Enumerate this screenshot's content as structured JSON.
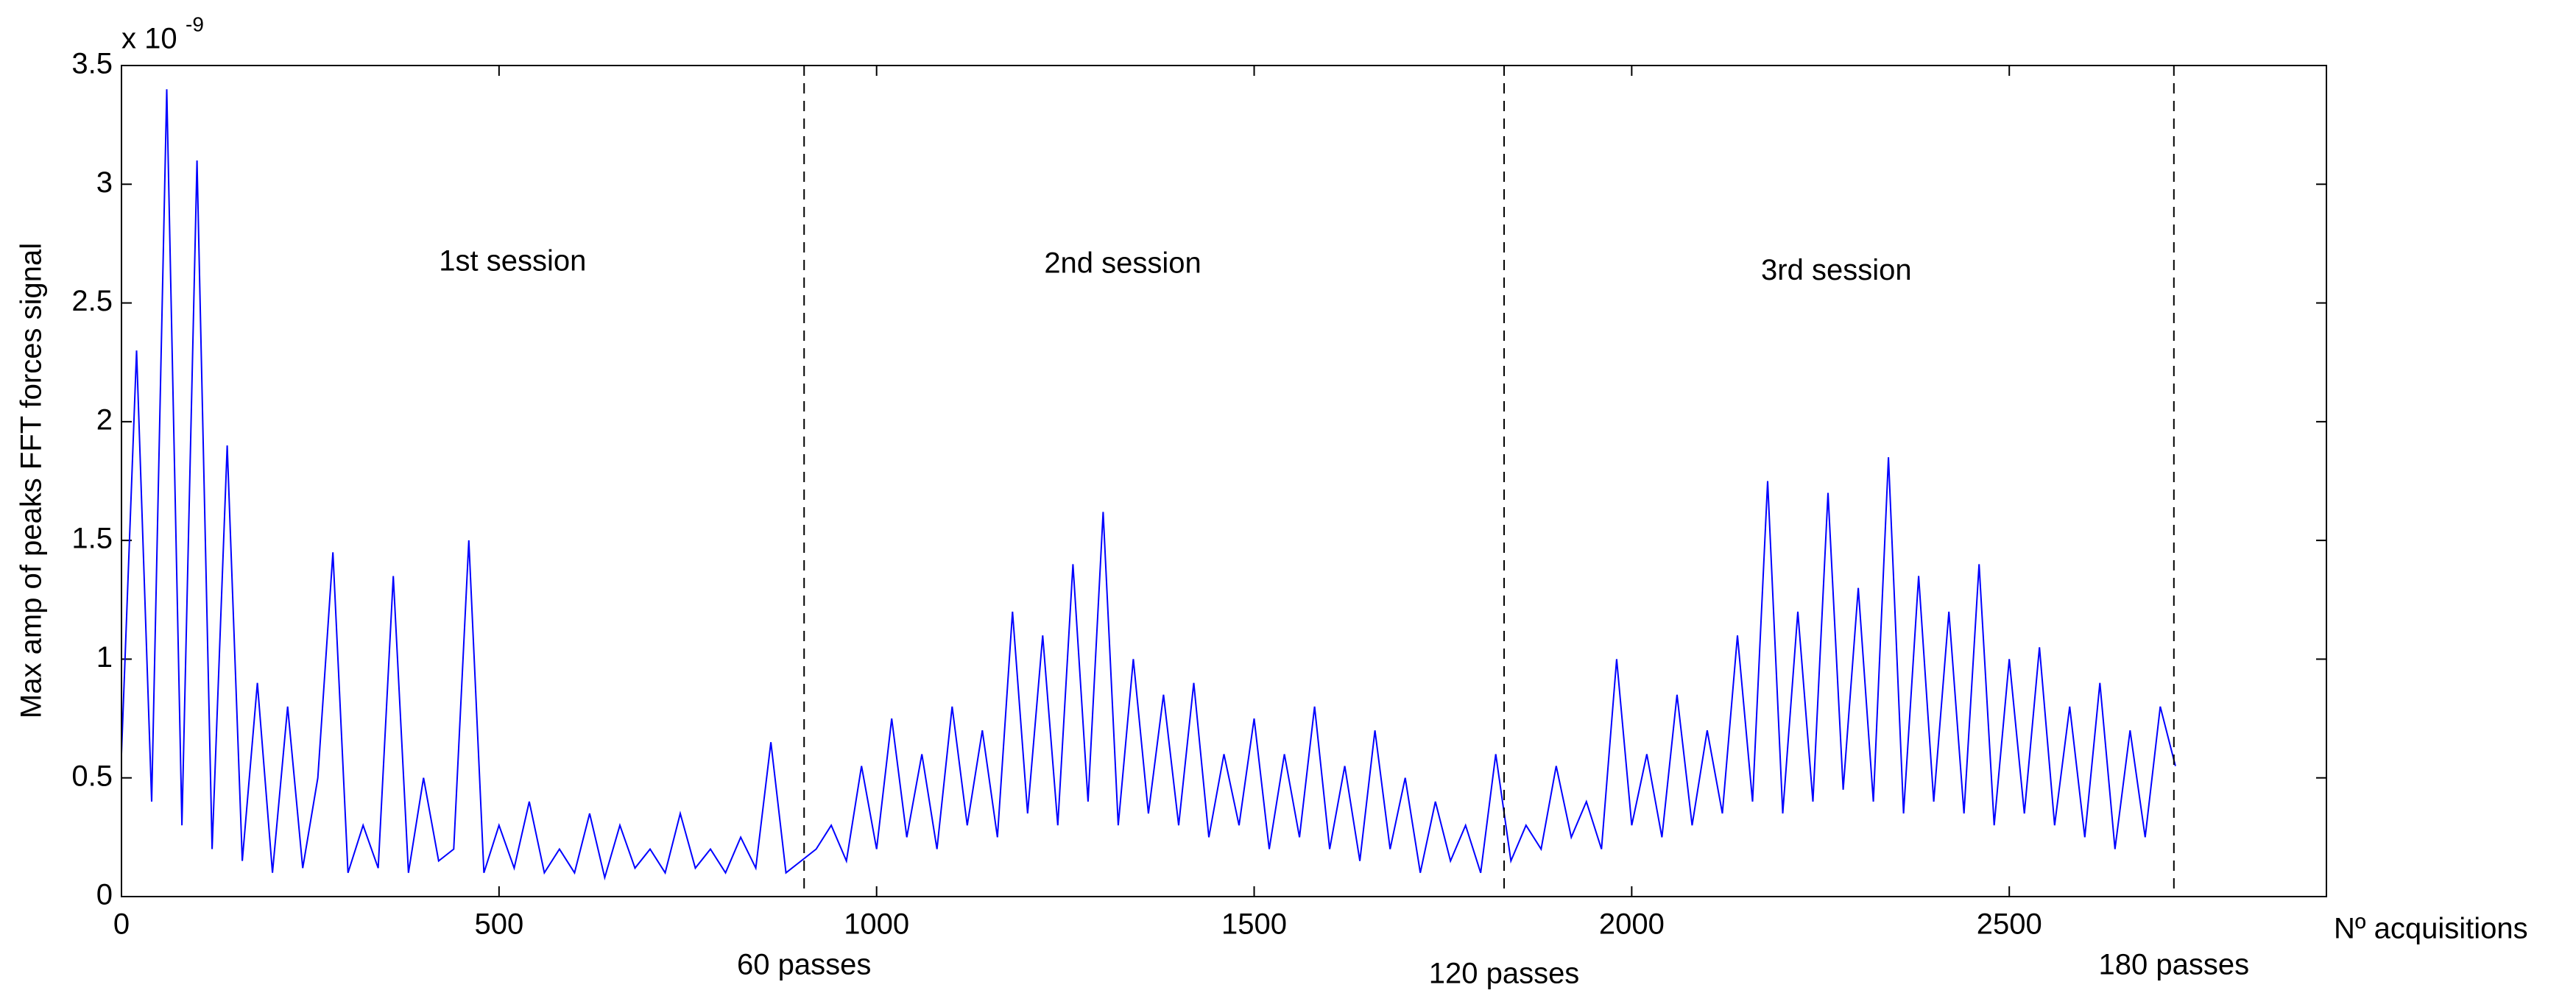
{
  "chart_data": {
    "type": "line",
    "ylabel": "Max amp of peaks FFT forces signal",
    "xlabel": "Nº acquisitions",
    "y_scale_base": "x 10",
    "y_scale_exponent": "-9",
    "xlim": [
      0,
      2920
    ],
    "ylim": [
      0,
      3.5
    ],
    "xticks": [
      0,
      500,
      1000,
      1500,
      2000,
      2500
    ],
    "yticks": [
      0,
      0.5,
      1,
      1.5,
      2,
      2.5,
      3,
      3.5
    ],
    "vlines": [
      {
        "x": 904,
        "label": "60 passes"
      },
      {
        "x": 1831,
        "label": "120 passes"
      },
      {
        "x": 2718,
        "label": "180 passes"
      }
    ],
    "annotations": [
      {
        "text": "1st session",
        "x": 518,
        "y": 2.67
      },
      {
        "text": "2nd session",
        "x": 1326,
        "y": 2.66
      },
      {
        "text": "3rd session",
        "x": 2271,
        "y": 2.63
      }
    ],
    "series": [
      {
        "name": "Max amp",
        "color": "#0000ff",
        "x": [
          0,
          20,
          40,
          60,
          80,
          100,
          120,
          140,
          160,
          180,
          200,
          220,
          240,
          260,
          280,
          300,
          320,
          340,
          360,
          380,
          400,
          420,
          440,
          460,
          480,
          500,
          520,
          540,
          560,
          580,
          600,
          620,
          640,
          660,
          680,
          700,
          720,
          740,
          760,
          780,
          800,
          820,
          840,
          860,
          880,
          900,
          920,
          940,
          960,
          980,
          1000,
          1020,
          1040,
          1060,
          1080,
          1100,
          1120,
          1140,
          1160,
          1180,
          1200,
          1220,
          1240,
          1260,
          1280,
          1300,
          1320,
          1340,
          1360,
          1380,
          1400,
          1420,
          1440,
          1460,
          1480,
          1500,
          1520,
          1540,
          1560,
          1580,
          1600,
          1620,
          1640,
          1660,
          1680,
          1700,
          1720,
          1740,
          1760,
          1780,
          1800,
          1820,
          1840,
          1860,
          1880,
          1900,
          1920,
          1940,
          1960,
          1980,
          2000,
          2020,
          2040,
          2060,
          2080,
          2100,
          2120,
          2140,
          2160,
          2180,
          2200,
          2220,
          2240,
          2260,
          2280,
          2300,
          2320,
          2340,
          2360,
          2380,
          2400,
          2420,
          2440,
          2460,
          2480,
          2500,
          2520,
          2540,
          2560,
          2580,
          2600,
          2620,
          2640,
          2660,
          2680,
          2700,
          2720
        ],
        "values": [
          0.6,
          2.3,
          0.4,
          3.4,
          0.3,
          3.1,
          0.2,
          1.9,
          0.15,
          0.9,
          0.1,
          0.8,
          0.12,
          0.5,
          1.45,
          0.1,
          0.3,
          0.12,
          1.35,
          0.1,
          0.5,
          0.15,
          0.2,
          1.5,
          0.1,
          0.3,
          0.12,
          0.4,
          0.1,
          0.2,
          0.1,
          0.35,
          0.08,
          0.3,
          0.12,
          0.2,
          0.1,
          0.35,
          0.12,
          0.2,
          0.1,
          0.25,
          0.12,
          0.65,
          0.1,
          0.15,
          0.2,
          0.3,
          0.15,
          0.55,
          0.2,
          0.75,
          0.25,
          0.6,
          0.2,
          0.8,
          0.3,
          0.7,
          0.25,
          1.2,
          0.35,
          1.1,
          0.3,
          1.4,
          0.4,
          1.62,
          0.3,
          1.0,
          0.35,
          0.85,
          0.3,
          0.9,
          0.25,
          0.6,
          0.3,
          0.75,
          0.2,
          0.6,
          0.25,
          0.8,
          0.2,
          0.55,
          0.15,
          0.7,
          0.2,
          0.5,
          0.1,
          0.4,
          0.15,
          0.3,
          0.1,
          0.6,
          0.15,
          0.3,
          0.2,
          0.55,
          0.25,
          0.4,
          0.2,
          1.0,
          0.3,
          0.6,
          0.25,
          0.85,
          0.3,
          0.7,
          0.35,
          1.1,
          0.4,
          1.75,
          0.35,
          1.2,
          0.4,
          1.7,
          0.45,
          1.3,
          0.4,
          1.85,
          0.35,
          1.35,
          0.4,
          1.2,
          0.35,
          1.4,
          0.3,
          1.0,
          0.35,
          1.05,
          0.3,
          0.8,
          0.25,
          0.9,
          0.2,
          0.7,
          0.25,
          0.8,
          0.55
        ]
      }
    ]
  }
}
